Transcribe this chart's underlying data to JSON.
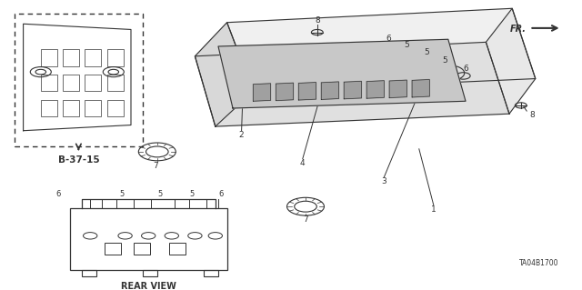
{
  "bg_color": "#ffffff",
  "line_color": "#333333",
  "fig_width": 6.4,
  "fig_height": 3.19,
  "dpi": 100,
  "title_code": "TA04B1700",
  "ref_label": "B-37-15",
  "rear_view_label": "REAR VIEW",
  "fr_label": "FR."
}
